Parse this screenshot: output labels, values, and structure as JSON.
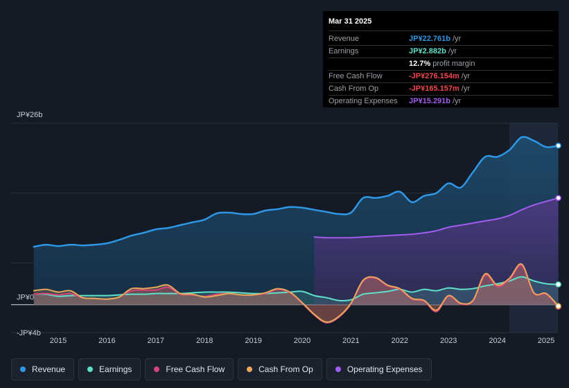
{
  "tooltip": {
    "date": "Mar 31 2025",
    "rows": [
      {
        "label": "Revenue",
        "value": "JP¥22.761b",
        "unit": "/yr",
        "color": "#2e97e6"
      },
      {
        "label": "Earnings",
        "value": "JP¥2.882b",
        "unit": "/yr",
        "color": "#5fe0c8"
      },
      {
        "label": "",
        "value": "12.7%",
        "unit": "profit margin",
        "color": "#ffffff"
      },
      {
        "label": "Free Cash Flow",
        "value": "-JP¥276.154m",
        "unit": "/yr",
        "color": "#f0484c"
      },
      {
        "label": "Cash From Op",
        "value": "-JP¥165.157m",
        "unit": "/yr",
        "color": "#f0484c"
      },
      {
        "label": "Operating Expenses",
        "value": "JP¥15.291b",
        "unit": "/yr",
        "color": "#a35cf0"
      }
    ]
  },
  "legend": [
    {
      "label": "Revenue",
      "color": "#2e97e6"
    },
    {
      "label": "Earnings",
      "color": "#5fe0c8"
    },
    {
      "label": "Free Cash Flow",
      "color": "#d8437a"
    },
    {
      "label": "Cash From Op",
      "color": "#e8a85a"
    },
    {
      "label": "Operating Expenses",
      "color": "#a35cf0"
    }
  ],
  "chart_data": {
    "type": "area",
    "title": "",
    "xlabel": "",
    "ylabel": "",
    "ylim": [
      -4,
      26
    ],
    "y_tick_labels": [
      {
        "value": 26,
        "label": "JP¥26b"
      },
      {
        "value": 0,
        "label": "JP¥0"
      },
      {
        "value": -4,
        "label": "-JP¥4b"
      }
    ],
    "x_ticks": [
      "2015",
      "2016",
      "2017",
      "2018",
      "2019",
      "2020",
      "2021",
      "2022",
      "2023",
      "2024",
      "2025"
    ],
    "series": [
      {
        "name": "Revenue",
        "color": "#2e97e6",
        "x": [
          2014.5,
          2014.75,
          2015.0,
          2015.25,
          2015.5,
          2015.75,
          2016.0,
          2016.25,
          2016.5,
          2016.75,
          2017.0,
          2017.25,
          2017.5,
          2017.75,
          2018.0,
          2018.25,
          2018.5,
          2018.75,
          2019.0,
          2019.25,
          2019.5,
          2019.75,
          2020.0,
          2020.25,
          2020.5,
          2020.75,
          2021.0,
          2021.25,
          2021.5,
          2021.75,
          2022.0,
          2022.25,
          2022.5,
          2022.75,
          2023.0,
          2023.25,
          2023.5,
          2023.75,
          2024.0,
          2024.25,
          2024.5,
          2024.75,
          2025.0,
          2025.25
        ],
        "values": [
          8.3,
          8.6,
          8.4,
          8.6,
          8.5,
          8.6,
          8.8,
          9.3,
          9.9,
          10.3,
          10.8,
          11.0,
          11.4,
          11.8,
          12.2,
          13.1,
          13.2,
          13.0,
          13.0,
          13.5,
          13.7,
          14.0,
          13.9,
          13.6,
          13.3,
          13.0,
          13.2,
          15.3,
          15.3,
          15.6,
          16.2,
          14.7,
          15.6,
          16.0,
          17.4,
          16.8,
          19.0,
          21.2,
          21.2,
          22.2,
          24.0,
          23.5,
          22.6,
          22.8
        ]
      },
      {
        "name": "Earnings",
        "color": "#5fe0c8",
        "x": [
          2014.5,
          2014.75,
          2015.0,
          2015.25,
          2015.5,
          2015.75,
          2016.0,
          2016.25,
          2016.5,
          2016.75,
          2017.0,
          2017.25,
          2017.5,
          2017.75,
          2018.0,
          2018.25,
          2018.5,
          2018.75,
          2019.0,
          2019.25,
          2019.5,
          2019.75,
          2020.0,
          2020.25,
          2020.5,
          2020.75,
          2021.0,
          2021.25,
          2021.5,
          2021.75,
          2022.0,
          2022.25,
          2022.5,
          2022.75,
          2023.0,
          2023.25,
          2023.5,
          2023.75,
          2024.0,
          2024.25,
          2024.5,
          2024.75,
          2025.0,
          2025.25
        ],
        "values": [
          1.5,
          1.5,
          1.2,
          1.3,
          1.3,
          1.3,
          1.3,
          1.4,
          1.5,
          1.5,
          1.6,
          1.6,
          1.6,
          1.7,
          1.8,
          1.8,
          1.8,
          1.7,
          1.6,
          1.6,
          1.7,
          1.8,
          1.9,
          1.3,
          1.0,
          0.6,
          0.7,
          1.5,
          1.7,
          1.9,
          2.2,
          1.8,
          2.2,
          2.0,
          2.4,
          2.2,
          2.3,
          2.7,
          3.0,
          3.4,
          4.0,
          3.4,
          3.0,
          2.9
        ]
      },
      {
        "name": "Free Cash Flow",
        "color": "#d8437a",
        "x": [
          2014.5,
          2014.75,
          2015.0,
          2015.25,
          2015.5,
          2015.75,
          2016.0,
          2016.25,
          2016.5,
          2016.75,
          2017.0,
          2017.25,
          2017.5,
          2017.75,
          2018.0,
          2018.25,
          2018.5,
          2018.75,
          2019.0,
          2019.25,
          2019.5,
          2019.75,
          2020.0,
          2020.25,
          2020.5,
          2020.75,
          2021.0,
          2021.25,
          2021.5,
          2021.75,
          2022.0,
          2022.25,
          2022.5,
          2022.75,
          2023.0,
          2023.25,
          2023.5,
          2023.75,
          2024.0,
          2024.25,
          2024.5,
          2024.75,
          2025.0,
          2025.25
        ],
        "values": [
          1.5,
          1.6,
          1.4,
          1.6,
          1.0,
          0.9,
          0.8,
          1.1,
          2.0,
          2.1,
          2.1,
          2.5,
          1.5,
          1.4,
          1.2,
          1.5,
          1.6,
          1.4,
          1.4,
          1.6,
          2.2,
          1.7,
          0.2,
          -1.5,
          -2.6,
          -1.8,
          0.1,
          3.4,
          3.8,
          2.7,
          2.2,
          0.8,
          0.5,
          -1.0,
          1.2,
          0.1,
          0.5,
          4.2,
          2.6,
          3.6,
          5.6,
          1.6,
          1.5,
          -0.3
        ]
      },
      {
        "name": "Cash From Op",
        "color": "#e8a85a",
        "x": [
          2014.5,
          2014.75,
          2015.0,
          2015.25,
          2015.5,
          2015.75,
          2016.0,
          2016.25,
          2016.5,
          2016.75,
          2017.0,
          2017.25,
          2017.5,
          2017.75,
          2018.0,
          2018.25,
          2018.5,
          2018.75,
          2019.0,
          2019.25,
          2019.5,
          2019.75,
          2020.0,
          2020.25,
          2020.5,
          2020.75,
          2021.0,
          2021.25,
          2021.5,
          2021.75,
          2022.0,
          2022.25,
          2022.5,
          2022.75,
          2023.0,
          2023.25,
          2023.5,
          2023.75,
          2024.0,
          2024.25,
          2024.5,
          2024.75,
          2025.0,
          2025.25
        ],
        "values": [
          2.0,
          2.2,
          1.8,
          2.0,
          1.0,
          0.9,
          0.8,
          1.1,
          2.3,
          2.3,
          2.5,
          2.8,
          1.6,
          1.5,
          1.1,
          1.3,
          1.6,
          1.4,
          1.4,
          1.7,
          2.3,
          1.8,
          0.3,
          -1.4,
          -2.5,
          -1.7,
          0.2,
          3.5,
          3.9,
          2.8,
          2.3,
          0.9,
          0.6,
          -0.8,
          1.3,
          0.2,
          0.6,
          4.4,
          2.8,
          3.8,
          5.8,
          1.7,
          1.6,
          -0.2
        ]
      },
      {
        "name": "Operating Expenses",
        "color": "#a35cf0",
        "x": [
          2020.25,
          2020.5,
          2020.75,
          2021.0,
          2021.25,
          2021.5,
          2021.75,
          2022.0,
          2022.25,
          2022.5,
          2022.75,
          2023.0,
          2023.25,
          2023.5,
          2023.75,
          2024.0,
          2024.25,
          2024.5,
          2024.75,
          2025.0,
          2025.25
        ],
        "values": [
          9.7,
          9.6,
          9.6,
          9.6,
          9.7,
          9.8,
          9.9,
          10.0,
          10.1,
          10.3,
          10.6,
          11.1,
          11.4,
          11.7,
          12.0,
          12.3,
          12.8,
          13.6,
          14.3,
          14.8,
          15.3
        ]
      }
    ]
  }
}
